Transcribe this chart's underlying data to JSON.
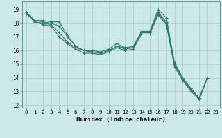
{
  "title": "",
  "xlabel": "Humidex (Indice chaleur)",
  "xlim": [
    -0.5,
    23.5
  ],
  "ylim": [
    11.8,
    19.6
  ],
  "yticks": [
    12,
    13,
    14,
    15,
    16,
    17,
    18,
    19
  ],
  "xticks": [
    0,
    1,
    2,
    3,
    4,
    5,
    6,
    7,
    8,
    9,
    10,
    11,
    12,
    13,
    14,
    15,
    16,
    17,
    18,
    19,
    20,
    21,
    22,
    23
  ],
  "bg_color": "#cce8e8",
  "grid_color": "#aacccc",
  "line_color": "#2a7a6a",
  "lines": [
    [
      18.8,
      18.2,
      18.2,
      18.1,
      18.1,
      17.1,
      16.3,
      16.0,
      16.0,
      15.9,
      16.1,
      16.5,
      16.2,
      16.3,
      17.4,
      17.4,
      19.0,
      18.4,
      15.1,
      14.0,
      13.2,
      12.5,
      14.0,
      null
    ],
    [
      18.7,
      18.1,
      18.0,
      17.9,
      17.3,
      16.6,
      16.2,
      16.0,
      15.9,
      15.8,
      16.0,
      16.3,
      16.2,
      16.2,
      17.3,
      17.3,
      18.8,
      18.1,
      15.0,
      13.9,
      13.1,
      12.5,
      14.0,
      null
    ],
    [
      18.7,
      18.2,
      18.1,
      18.0,
      17.8,
      17.0,
      16.3,
      16.0,
      15.9,
      15.8,
      16.0,
      16.3,
      16.1,
      16.2,
      17.3,
      17.3,
      18.7,
      18.0,
      14.9,
      13.9,
      13.2,
      12.5,
      14.0,
      null
    ],
    [
      18.8,
      18.1,
      17.9,
      17.8,
      17.0,
      16.5,
      16.1,
      15.8,
      15.8,
      15.7,
      15.9,
      16.2,
      16.0,
      16.1,
      17.2,
      17.2,
      18.6,
      17.9,
      14.8,
      13.8,
      13.0,
      12.4,
      14.0,
      null
    ]
  ]
}
